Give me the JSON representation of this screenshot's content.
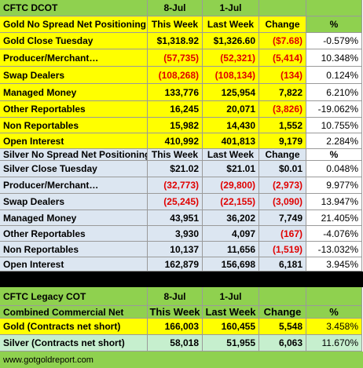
{
  "table": {
    "rows": [
      [
        "CFTC DCOT",
        "8-Jul",
        "1-Jul",
        null,
        null
      ],
      [
        "Gold No Spread Net Positioning",
        "This Week",
        "Last Week",
        "Change",
        "%"
      ],
      [
        "Gold Close Tuesday",
        "$1,318.92",
        "$1,326.60",
        "($7.68)",
        "-0.579%"
      ],
      [
        "Producer/Merchant…",
        "(57,735)",
        "(52,321)",
        "(5,414)",
        "10.348%"
      ],
      [
        "Swap Dealers",
        "(108,268)",
        "(108,134)",
        "(134)",
        "0.124%"
      ],
      [
        "Managed Money",
        "133,776",
        "125,954",
        "7,822",
        "6.210%"
      ],
      [
        "Other Reportables",
        "16,245",
        "20,071",
        "(3,826)",
        "-19.062%"
      ],
      [
        "Non Reportables",
        "15,982",
        "14,430",
        "1,552",
        "10.755%"
      ],
      [
        "Open Interest",
        "410,992",
        "401,813",
        "9,179",
        "2.284%"
      ],
      [
        "Silver No Spread Net Positioning",
        "This Week",
        "Last Week",
        "Change",
        "%"
      ],
      [
        "Silver Close Tuesday",
        "$21.02",
        "$21.01",
        "$0.01",
        "0.048%"
      ],
      [
        "Producer/Merchant…",
        "(32,773)",
        "(29,800)",
        "(2,973)",
        "9.977%"
      ],
      [
        "Swap Dealers",
        "(25,245)",
        "(22,155)",
        "(3,090)",
        "13.947%"
      ],
      [
        "Managed Money",
        "43,951",
        "36,202",
        "7,749",
        "21.405%"
      ],
      [
        "Other Reportables",
        "3,930",
        "4,097",
        "(167)",
        "-4.076%"
      ],
      [
        "Non Reportables",
        "10,137",
        "11,656",
        "(1,519)",
        "-13.032%"
      ],
      [
        "Open Interest",
        "162,879",
        "156,698",
        "6,181",
        "3.945%"
      ],
      [
        "CFTC Legacy COT",
        "8-Jul",
        "1-Jul",
        null,
        null
      ],
      [
        "Combined Commercial Net",
        "This Week",
        "Last Week",
        "Change",
        "%"
      ],
      [
        "Gold (Contracts net short)",
        "166,003",
        "160,455",
        "5,548",
        "3.458%"
      ],
      [
        "Silver (Contracts net short)",
        "58,018",
        "51,955",
        "6,063",
        "11.670%"
      ]
    ],
    "footer": "www.gotgoldreport.com"
  }
}
